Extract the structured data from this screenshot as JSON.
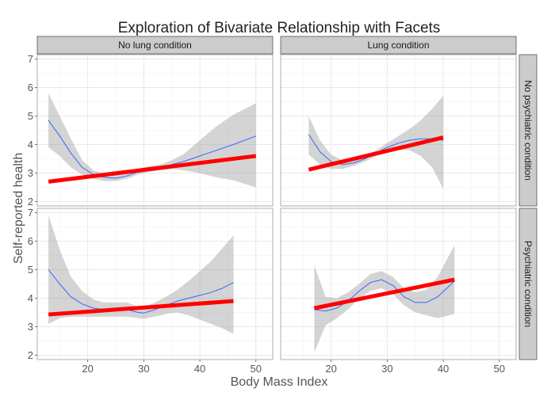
{
  "chart_data": {
    "type": "line",
    "title": "Exploration of Bivariate Relationship with Facets",
    "xlabel": "Body Mass Index",
    "ylabel": "Self-reported health",
    "xlim": [
      11,
      53
    ],
    "ylim": [
      1.85,
      7.15
    ],
    "x_ticks": [
      "20",
      "30",
      "40",
      "50"
    ],
    "x_tick_values": [
      20,
      30,
      40,
      50
    ],
    "y_ticks": [
      "2",
      "3",
      "4",
      "5",
      "6",
      "7"
    ],
    "y_tick_values": [
      2,
      3,
      4,
      5,
      6,
      7
    ],
    "column_facets": [
      "No lung condition",
      "Lung condition"
    ],
    "row_facets": [
      "No psychiatric condition",
      "Psychiatric condition"
    ],
    "grid": true,
    "colors": {
      "loess": "#3366ff",
      "linear_fit": "#ff0000",
      "band": "#999999",
      "strip": "#cccccc"
    },
    "panels": [
      {
        "col": 0,
        "row": 0,
        "linear_fit": {
          "x": [
            13,
            50
          ],
          "y": [
            2.7,
            3.6
          ]
        },
        "loess": {
          "x": [
            13,
            15,
            17,
            19,
            21,
            23,
            25,
            27,
            29,
            31,
            33,
            35,
            37,
            40,
            43,
            46,
            50
          ],
          "y": [
            4.85,
            4.3,
            3.7,
            3.2,
            2.95,
            2.85,
            2.82,
            2.9,
            3.05,
            3.15,
            3.2,
            3.3,
            3.4,
            3.6,
            3.8,
            4.0,
            4.3
          ],
          "lower": [
            3.9,
            3.6,
            3.2,
            2.95,
            2.8,
            2.72,
            2.72,
            2.8,
            2.95,
            3.05,
            3.1,
            3.15,
            3.1,
            3.0,
            2.85,
            2.75,
            2.5
          ],
          "upper": [
            5.8,
            5.0,
            4.2,
            3.45,
            3.1,
            2.98,
            2.95,
            3.0,
            3.15,
            3.25,
            3.3,
            3.45,
            3.65,
            4.15,
            4.65,
            5.05,
            5.45
          ]
        }
      },
      {
        "col": 1,
        "row": 0,
        "linear_fit": {
          "x": [
            16,
            40
          ],
          "y": [
            3.12,
            4.25
          ]
        },
        "loess": {
          "x": [
            16,
            18,
            20,
            22,
            24,
            26,
            28,
            30,
            32,
            34,
            36,
            38,
            40
          ],
          "y": [
            4.35,
            3.75,
            3.4,
            3.3,
            3.35,
            3.5,
            3.7,
            3.9,
            4.05,
            4.15,
            4.2,
            4.2,
            4.15
          ],
          "lower": [
            3.65,
            3.3,
            3.15,
            3.15,
            3.25,
            3.4,
            3.6,
            3.75,
            3.85,
            3.8,
            3.6,
            3.2,
            2.45
          ],
          "upper": [
            5.0,
            4.15,
            3.65,
            3.45,
            3.45,
            3.6,
            3.8,
            4.05,
            4.3,
            4.55,
            4.85,
            5.25,
            5.7
          ]
        }
      },
      {
        "col": 0,
        "row": 1,
        "linear_fit": {
          "x": [
            13,
            46
          ],
          "y": [
            3.43,
            3.9
          ]
        },
        "loess": {
          "x": [
            13,
            15,
            17,
            19,
            21,
            23,
            25,
            27,
            29,
            30,
            32,
            34,
            36,
            38,
            40,
            42,
            44,
            46
          ],
          "y": [
            5.0,
            4.5,
            4.05,
            3.8,
            3.65,
            3.6,
            3.6,
            3.6,
            3.5,
            3.48,
            3.6,
            3.75,
            3.9,
            4.0,
            4.1,
            4.2,
            4.35,
            4.55
          ],
          "lower": [
            3.1,
            3.3,
            3.35,
            3.35,
            3.35,
            3.35,
            3.35,
            3.35,
            3.3,
            3.28,
            3.35,
            3.45,
            3.5,
            3.4,
            3.25,
            3.1,
            2.95,
            2.75
          ],
          "upper": [
            6.9,
            5.7,
            4.75,
            4.25,
            3.95,
            3.85,
            3.85,
            3.85,
            3.7,
            3.68,
            3.85,
            4.05,
            4.3,
            4.6,
            4.95,
            5.3,
            5.75,
            6.2
          ]
        }
      },
      {
        "col": 1,
        "row": 1,
        "linear_fit": {
          "x": [
            17,
            42
          ],
          "y": [
            3.65,
            4.65
          ]
        },
        "loess": {
          "x": [
            17,
            19,
            21,
            23,
            25,
            27,
            29,
            31,
            33,
            35,
            37,
            39,
            42
          ],
          "y": [
            3.6,
            3.55,
            3.65,
            3.9,
            4.25,
            4.55,
            4.65,
            4.45,
            4.05,
            3.85,
            3.85,
            4.05,
            4.6
          ],
          "lower": [
            2.1,
            3.05,
            3.3,
            3.6,
            4.0,
            4.25,
            4.35,
            4.15,
            3.75,
            3.5,
            3.4,
            3.3,
            3.45
          ],
          "upper": [
            5.15,
            4.05,
            4.0,
            4.2,
            4.5,
            4.85,
            4.95,
            4.75,
            4.35,
            4.2,
            4.3,
            4.75,
            5.85
          ]
        }
      }
    ]
  }
}
